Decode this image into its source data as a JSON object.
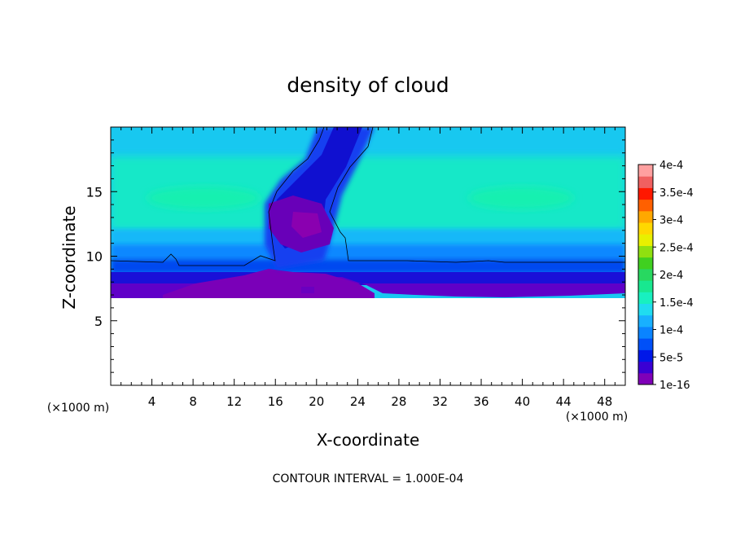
{
  "chart_data": {
    "type": "heatmap",
    "title": "density of cloud",
    "xlabel": "X-coordinate",
    "ylabel": "Z-coordinate",
    "x_unit_left": "(×1000 m)",
    "x_unit_right": "(×1000 m)",
    "footer": "CONTOUR INTERVAL = 1.000E-04",
    "xlim": [
      0,
      50
    ],
    "ylim": [
      0,
      20
    ],
    "x_ticks": [
      4,
      8,
      12,
      16,
      20,
      24,
      28,
      32,
      36,
      40,
      44,
      48
    ],
    "y_ticks": [
      5,
      10,
      15
    ],
    "colorbar": {
      "labels": [
        "1e-16",
        "5e-5",
        "1e-4",
        "1.5e-4",
        "2e-4",
        "2.5e-4",
        "3e-4",
        "3.5e-4",
        "4e-4"
      ],
      "values": [
        0,
        5e-05,
        0.0001,
        0.00015,
        0.0002,
        0.00025,
        0.0003,
        0.00035,
        0.0004
      ],
      "colors": [
        "#7f00b8",
        "#3a00d4",
        "#0018e8",
        "#0050f8",
        "#0a84ff",
        "#18b0ff",
        "#20dcf0",
        "#18f0c0",
        "#18e890",
        "#28d860",
        "#40d020",
        "#90e010",
        "#e8f000",
        "#ffd800",
        "#ffa800",
        "#ff6000",
        "#ff1800",
        "#f06060",
        "#ffa0a0"
      ]
    },
    "contour_level": 0.0001
  }
}
